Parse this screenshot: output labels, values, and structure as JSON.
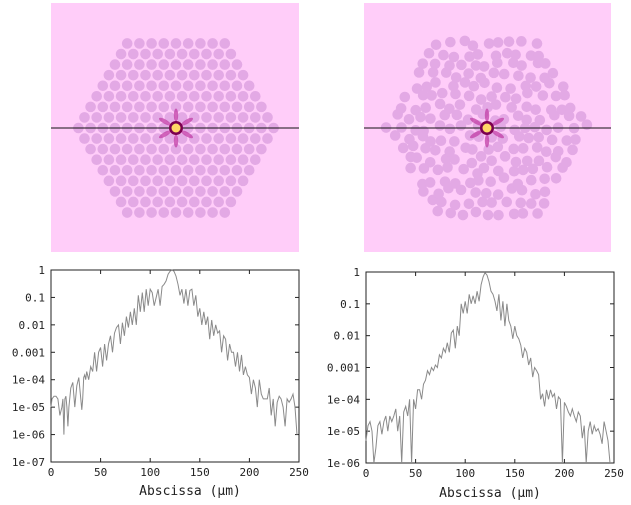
{
  "colors": {
    "background": "#ffcdf9",
    "holes": "#e3a9e5",
    "core_ring": "#7a0050",
    "core_center": "#ffd866",
    "mode_lobes": "#c13fa6",
    "cut_line": "#111111",
    "trace": "#8a8a8a"
  },
  "fiber_images": [
    {
      "name": "regular-hexagonal-lattice",
      "lattice": "regular",
      "rings": 8,
      "core": "single missing hole"
    },
    {
      "name": "perturbed-hexagonal-lattice",
      "lattice": "perturbed",
      "rings": 8,
      "core": "single missing hole"
    }
  ],
  "chart_data": [
    {
      "type": "line",
      "xlabel": "Abscissa (μm)",
      "ylabel": "",
      "title": "",
      "xlim": [
        0,
        250
      ],
      "ylim": [
        1e-07,
        1
      ],
      "y_scale": "log",
      "grid": false,
      "x_ticks": [
        "0",
        "50",
        "100",
        "150",
        "200",
        "250"
      ],
      "y_ticks": [
        "1",
        "0.1",
        "0.01",
        "0.001",
        "1e-04",
        "1e-05",
        "1e-06",
        "1e-07"
      ],
      "series": [
        {
          "x": [
            0,
            1,
            3,
            5,
            7,
            9,
            11,
            12,
            13,
            14,
            15,
            16,
            17,
            18,
            20,
            22,
            24,
            26,
            28,
            30,
            31,
            32,
            33,
            34,
            35,
            36,
            38,
            40,
            42,
            44,
            46,
            48,
            50,
            52,
            54,
            56,
            58,
            60,
            62,
            64,
            66,
            68,
            70,
            72,
            74,
            76,
            78,
            80,
            82,
            84,
            86,
            88,
            90,
            92,
            94,
            96,
            98,
            100,
            102,
            104,
            106,
            108,
            110,
            112,
            114,
            116,
            118,
            120,
            122,
            124,
            126,
            128,
            130,
            132,
            134,
            136,
            138,
            140,
            142,
            144,
            146,
            148,
            150,
            152,
            154,
            156,
            158,
            160,
            162,
            164,
            166,
            168,
            170,
            172,
            174,
            176,
            178,
            180,
            182,
            184,
            186,
            188,
            190,
            192,
            194,
            196,
            198,
            200,
            202,
            204,
            206,
            208,
            210,
            212,
            214,
            216,
            218,
            220,
            222,
            224,
            226,
            228,
            230,
            232,
            234,
            236,
            238,
            240,
            242,
            244,
            246,
            248
          ],
          "y": [
            1e-05,
            2e-05,
            2.5e-05,
            2.5e-05,
            2e-05,
            5e-06,
            1e-05,
            2e-05,
            1e-06,
            2e-05,
            2.5e-05,
            1e-05,
            2e-06,
            1e-05,
            5e-05,
            8e-05,
            1e-05,
            6e-05,
            0.00012,
            2e-05,
            8e-06,
            2e-05,
            0.00012,
            0.00015,
            0.0001,
            0.0002,
            0.0001,
            0.0003,
            0.0002,
            0.001,
            0.0002,
            0.001,
            0.0015,
            0.0003,
            0.002,
            0.0005,
            0.002,
            0.004,
            0.001,
            0.005,
            0.008,
            0.01,
            0.002,
            0.012,
            0.004,
            0.02,
            0.008,
            0.03,
            0.01,
            0.04,
            0.01,
            0.12,
            0.03,
            0.15,
            0.03,
            0.2,
            0.05,
            0.2,
            0.15,
            0.05,
            0.1,
            0.2,
            0.05,
            0.25,
            0.3,
            0.4,
            0.7,
            0.9,
            1.0,
            0.9,
            0.6,
            0.3,
            0.12,
            0.2,
            0.06,
            0.2,
            0.05,
            0.18,
            0.2,
            0.05,
            0.12,
            0.02,
            0.04,
            0.01,
            0.03,
            0.01,
            0.02,
            0.003,
            0.015,
            0.004,
            0.01,
            0.005,
            0.006,
            0.001,
            0.004,
            0.003,
            0.0005,
            0.002,
            0.001,
            0.001,
            0.0003,
            0.001,
            0.0002,
            0.0008,
            0.00015,
            0.0003,
            0.00015,
            0.00012,
            3e-05,
            0.0001,
            5e-05,
            1e-05,
            0.0001,
            3e-05,
            2e-05,
            2e-05,
            2e-05,
            5e-05,
            5e-06,
            2e-05,
            2e-06,
            1.5e-05,
            2.5e-05,
            2e-05,
            1e-05,
            2e-06,
            2e-05,
            1.5e-05,
            2e-05,
            3e-05,
            1e-05,
            1e-06
          ]
        }
      ]
    },
    {
      "type": "line",
      "xlabel": "Abscissa (μm)",
      "ylabel": "",
      "title": "",
      "xlim": [
        0,
        250
      ],
      "ylim": [
        1e-06,
        1
      ],
      "y_scale": "log",
      "grid": false,
      "x_ticks": [
        "0",
        "50",
        "100",
        "150",
        "200",
        "250"
      ],
      "y_ticks": [
        "1",
        "0.1",
        "0.01",
        "0.001",
        "1e-04",
        "1e-05",
        "1e-06"
      ],
      "series": [
        {
          "x": [
            0,
            2,
            4,
            6,
            8,
            10,
            12,
            14,
            16,
            18,
            20,
            22,
            24,
            26,
            28,
            30,
            32,
            34,
            36,
            38,
            40,
            42,
            44,
            46,
            48,
            50,
            52,
            54,
            56,
            58,
            60,
            62,
            64,
            66,
            68,
            70,
            72,
            74,
            76,
            78,
            80,
            82,
            84,
            86,
            88,
            90,
            92,
            94,
            96,
            98,
            100,
            102,
            104,
            106,
            108,
            110,
            112,
            114,
            116,
            118,
            120,
            122,
            124,
            126,
            128,
            130,
            132,
            134,
            136,
            138,
            140,
            142,
            144,
            146,
            148,
            150,
            152,
            154,
            156,
            158,
            160,
            162,
            164,
            166,
            168,
            170,
            172,
            174,
            176,
            178,
            180,
            182,
            184,
            186,
            188,
            190,
            192,
            194,
            196,
            198,
            200,
            202,
            204,
            206,
            208,
            210,
            212,
            214,
            216,
            218,
            220,
            222,
            224,
            226,
            228,
            230,
            232,
            234,
            236,
            238,
            240,
            242,
            244,
            246
          ],
          "y": [
            5e-06,
            1.5e-05,
            2e-05,
            1e-05,
            1e-06,
            3e-06,
            1.5e-05,
            2e-05,
            8e-06,
            2e-05,
            3e-05,
            1e-05,
            3e-05,
            2e-05,
            3e-05,
            5e-05,
            1e-05,
            3e-05,
            1e-06,
            4e-05,
            6e-05,
            3e-05,
            0.0001,
            1e-06,
            0.0001,
            5e-05,
            0.0002,
            0.0002,
            0.0001,
            0.0003,
            0.0004,
            0.0008,
            0.0006,
            0.001,
            0.0008,
            0.0012,
            0.001,
            0.0025,
            0.002,
            0.004,
            0.003,
            0.006,
            0.003,
            0.012,
            0.015,
            0.004,
            0.02,
            0.01,
            0.1,
            0.05,
            0.12,
            0.05,
            0.2,
            0.1,
            0.18,
            0.1,
            0.25,
            0.12,
            0.4,
            0.7,
            0.95,
            0.8,
            0.5,
            0.25,
            0.2,
            0.12,
            0.06,
            0.2,
            0.03,
            0.12,
            0.02,
            0.1,
            0.03,
            0.02,
            0.008,
            0.02,
            0.01,
            0.008,
            0.005,
            0.002,
            0.004,
            0.003,
            0.0012,
            0.002,
            0.0005,
            0.001,
            0.0008,
            0.0006,
            0.0001,
            0.00015,
            6e-05,
            0.0002,
            0.0001,
            0.0002,
            0.00012,
            0.00015,
            5e-05,
            0.00012,
            0.0001,
            1e-06,
            8e-05,
            6e-05,
            4e-05,
            3e-05,
            5e-05,
            3e-05,
            2e-05,
            4e-05,
            3e-05,
            6e-06,
            1.5e-05,
            1e-06,
            1e-05,
            2e-05,
            8e-06,
            1.5e-05,
            1e-05,
            1.2e-05,
            8e-06,
            4e-06,
            2e-05,
            1e-05,
            5e-06,
            1e-06
          ]
        }
      ]
    }
  ]
}
